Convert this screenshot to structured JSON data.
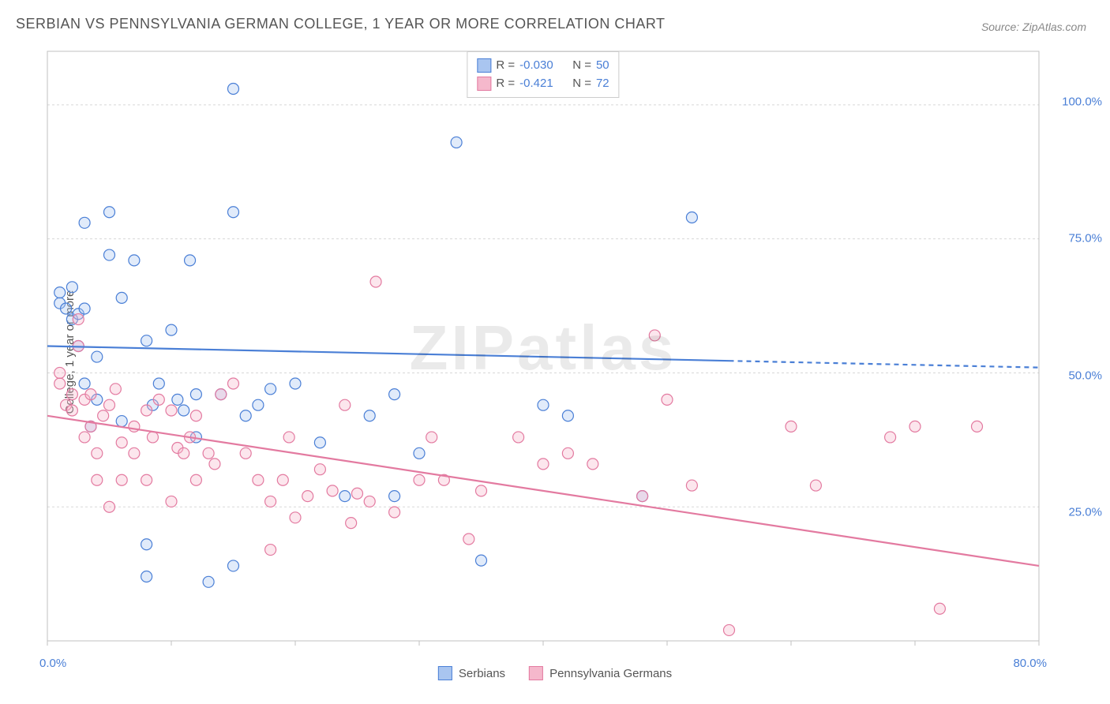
{
  "title": "SERBIAN VS PENNSYLVANIA GERMAN COLLEGE, 1 YEAR OR MORE CORRELATION CHART",
  "source": "Source: ZipAtlas.com",
  "watermark": "ZIPatlas",
  "chart": {
    "type": "scatter",
    "background_color": "#ffffff",
    "grid_color": "#d8d8d8",
    "axis_color": "#c0c0c0",
    "xlim": [
      0,
      80
    ],
    "ylim": [
      0,
      110
    ],
    "xtick_step": 10,
    "ytick_step": 25,
    "x_labels": [
      {
        "v": 0,
        "label": "0.0%"
      },
      {
        "v": 80,
        "label": "80.0%"
      }
    ],
    "y_labels": [
      {
        "v": 25,
        "label": "25.0%"
      },
      {
        "v": 50,
        "label": "50.0%"
      },
      {
        "v": 75,
        "label": "75.0%"
      },
      {
        "v": 100,
        "label": "100.0%"
      }
    ],
    "ylabel": "College, 1 year or more",
    "title_fontsize": 18,
    "label_fontsize": 15,
    "tick_color": "#4a7fd6",
    "marker_radius": 7,
    "marker_fill_opacity": 0.35,
    "marker_stroke_width": 1.2,
    "trend_line_width": 2.2
  },
  "legend": {
    "series": [
      {
        "label": "Serbians",
        "fill": "#a9c5f0",
        "stroke": "#4a7fd6"
      },
      {
        "label": "Pennsylvania Germans",
        "fill": "#f5b8cc",
        "stroke": "#e37aa0"
      }
    ]
  },
  "stats": [
    {
      "fill": "#a9c5f0",
      "stroke": "#4a7fd6",
      "R": "-0.030",
      "N": "50"
    },
    {
      "fill": "#f5b8cc",
      "stroke": "#e37aa0",
      "R": "-0.421",
      "N": "72"
    }
  ],
  "series": [
    {
      "name": "Serbians",
      "fill": "#a9c5f0",
      "stroke": "#4a7fd6",
      "trend": {
        "y_at_xmin": 55,
        "y_at_xmax": 51,
        "dash_from_x": 55
      },
      "points": [
        [
          1,
          65
        ],
        [
          1,
          63
        ],
        [
          1.5,
          62
        ],
        [
          2,
          66
        ],
        [
          2,
          60
        ],
        [
          2.5,
          61
        ],
        [
          2.5,
          55
        ],
        [
          3,
          62
        ],
        [
          3,
          48
        ],
        [
          3,
          78
        ],
        [
          3.5,
          40
        ],
        [
          4,
          45
        ],
        [
          4,
          53
        ],
        [
          5,
          80
        ],
        [
          5,
          72
        ],
        [
          6,
          64
        ],
        [
          6,
          41
        ],
        [
          7,
          71
        ],
        [
          8,
          56
        ],
        [
          8,
          12
        ],
        [
          8.5,
          44
        ],
        [
          9,
          48
        ],
        [
          10,
          58
        ],
        [
          10.5,
          45
        ],
        [
          11,
          43
        ],
        [
          11.5,
          71
        ],
        [
          12,
          46
        ],
        [
          12,
          38
        ],
        [
          13,
          11
        ],
        [
          14,
          46
        ],
        [
          15,
          103
        ],
        [
          15,
          80
        ],
        [
          16,
          42
        ],
        [
          17,
          44
        ],
        [
          18,
          47
        ],
        [
          20,
          48
        ],
        [
          22,
          37
        ],
        [
          24,
          27
        ],
        [
          26,
          42
        ],
        [
          28,
          46
        ],
        [
          28,
          27
        ],
        [
          30,
          35
        ],
        [
          33,
          93
        ],
        [
          35,
          15
        ],
        [
          40,
          44
        ],
        [
          42,
          42
        ],
        [
          48,
          27
        ],
        [
          52,
          79
        ],
        [
          15,
          14
        ],
        [
          8,
          18
        ]
      ]
    },
    {
      "name": "Pennsylvania Germans",
      "fill": "#f5b8cc",
      "stroke": "#e37aa0",
      "trend": {
        "y_at_xmin": 42,
        "y_at_xmax": 14,
        "dash_from_x": null
      },
      "points": [
        [
          1,
          48
        ],
        [
          1,
          50
        ],
        [
          1.5,
          44
        ],
        [
          2,
          43
        ],
        [
          2,
          46
        ],
        [
          2.5,
          55
        ],
        [
          2.5,
          60
        ],
        [
          3,
          38
        ],
        [
          3,
          45
        ],
        [
          3.5,
          46
        ],
        [
          3.5,
          40
        ],
        [
          4,
          35
        ],
        [
          4,
          30
        ],
        [
          4.5,
          42
        ],
        [
          5,
          25
        ],
        [
          5,
          44
        ],
        [
          5.5,
          47
        ],
        [
          6,
          37
        ],
        [
          6,
          30
        ],
        [
          7,
          40
        ],
        [
          7,
          35
        ],
        [
          8,
          43
        ],
        [
          8,
          30
        ],
        [
          8.5,
          38
        ],
        [
          9,
          45
        ],
        [
          10,
          26
        ],
        [
          10,
          43
        ],
        [
          10.5,
          36
        ],
        [
          11,
          35
        ],
        [
          11.5,
          38
        ],
        [
          12,
          30
        ],
        [
          12,
          42
        ],
        [
          13,
          35
        ],
        [
          13.5,
          33
        ],
        [
          14,
          46
        ],
        [
          15,
          48
        ],
        [
          16,
          35
        ],
        [
          17,
          30
        ],
        [
          18,
          26
        ],
        [
          18,
          17
        ],
        [
          19,
          30
        ],
        [
          19.5,
          38
        ],
        [
          20,
          23
        ],
        [
          21,
          27
        ],
        [
          22,
          32
        ],
        [
          23,
          28
        ],
        [
          24,
          44
        ],
        [
          24.5,
          22
        ],
        [
          25,
          27.5
        ],
        [
          26,
          26
        ],
        [
          26.5,
          67
        ],
        [
          28,
          24
        ],
        [
          30,
          30
        ],
        [
          31,
          38
        ],
        [
          32,
          30
        ],
        [
          34,
          19
        ],
        [
          35,
          28
        ],
        [
          38,
          38
        ],
        [
          40,
          33
        ],
        [
          42,
          35
        ],
        [
          44,
          33
        ],
        [
          48,
          27
        ],
        [
          49,
          57
        ],
        [
          50,
          45
        ],
        [
          52,
          29
        ],
        [
          55,
          2
        ],
        [
          60,
          40
        ],
        [
          62,
          29
        ],
        [
          68,
          38
        ],
        [
          70,
          40
        ],
        [
          72,
          6
        ],
        [
          75,
          40
        ]
      ]
    }
  ]
}
